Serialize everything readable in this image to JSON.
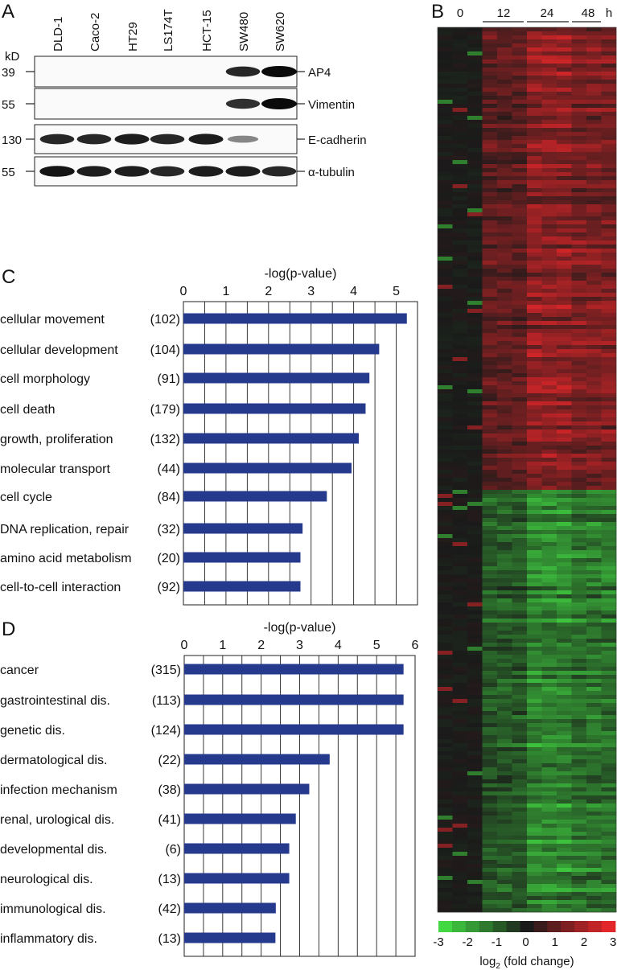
{
  "panel_letters": {
    "a": "A",
    "b": "B",
    "c": "C",
    "d": "D"
  },
  "blot": {
    "kd_label": "kD",
    "cell_lines": [
      "DLD-1",
      "Caco-2",
      "HT29",
      "LS174T",
      "HCT-15",
      "SW480",
      "SW620"
    ],
    "rows": [
      {
        "marker": "39",
        "protein": "AP4",
        "levels": [
          0,
          0,
          0,
          0,
          0,
          0.85,
          1.0
        ]
      },
      {
        "marker": "55",
        "protein": "Vimentin",
        "levels": [
          0,
          0,
          0,
          0,
          0,
          0.8,
          1.0
        ]
      },
      {
        "marker": "130",
        "protein": "E-cadherin",
        "levels": [
          0.85,
          0.85,
          0.9,
          0.85,
          0.9,
          0.35,
          0
        ]
      },
      {
        "marker": "55",
        "protein": "α-tubulin",
        "levels": [
          0.95,
          0.9,
          0.9,
          0.85,
          0.9,
          0.9,
          0.85
        ]
      }
    ]
  },
  "heatmap": {
    "time_labels": [
      "0",
      "12",
      "24",
      "48"
    ],
    "time_unit": "h",
    "colorbar_ticks": [
      "-3",
      "-2",
      "-1",
      "0",
      "1",
      "2",
      "3"
    ],
    "colorbar_label_main": "log",
    "colorbar_label_sub": "2",
    "colorbar_label_rest": " (fold change)",
    "colors": {
      "negative": "#3fd43f",
      "zero": "#1a1a1a",
      "positive": "#e0262b"
    }
  },
  "bar_color": "#253a8c",
  "chart_data": [
    {
      "type": "bar",
      "orientation": "horizontal",
      "xlabel": "-log(p-value)",
      "xlim": [
        0,
        5.5
      ],
      "xticks": [
        0,
        1,
        2,
        3,
        4,
        5
      ],
      "grid": true,
      "categories": [
        "cellular movement",
        "cellular development",
        "cell morphology",
        "cell death",
        "growth, proliferation",
        "molecular transport",
        "cell cycle",
        "DNA replication, repair",
        "amino acid metabolism",
        "cell-to-cell interaction"
      ],
      "counts": [
        "(102)",
        "(104)",
        "(91)",
        "(179)",
        "(132)",
        "(44)",
        "(84)",
        "(32)",
        "(20)",
        "(92)"
      ],
      "values": [
        5.25,
        4.6,
        4.37,
        4.28,
        4.12,
        3.95,
        3.37,
        2.8,
        2.75,
        2.75
      ]
    },
    {
      "type": "bar",
      "orientation": "horizontal",
      "xlabel": "-log(p-value)",
      "xlim": [
        0,
        6
      ],
      "xticks": [
        0,
        1,
        2,
        3,
        4,
        5,
        6
      ],
      "grid": true,
      "categories": [
        "cancer",
        "gastrointestinal dis.",
        "genetic dis.",
        "dermatological dis.",
        "infection mechanism",
        "renal, urological dis.",
        "developmental dis.",
        "neurological dis.",
        "immunological dis.",
        "inflammatory dis."
      ],
      "counts": [
        "(315)",
        "(113)",
        "(124)",
        "(22)",
        "(38)",
        "(41)",
        "(6)",
        "(13)",
        "(42)",
        "(13)"
      ],
      "values": [
        5.7,
        5.7,
        5.7,
        3.78,
        3.25,
        2.9,
        2.73,
        2.73,
        2.38,
        2.37
      ]
    }
  ]
}
